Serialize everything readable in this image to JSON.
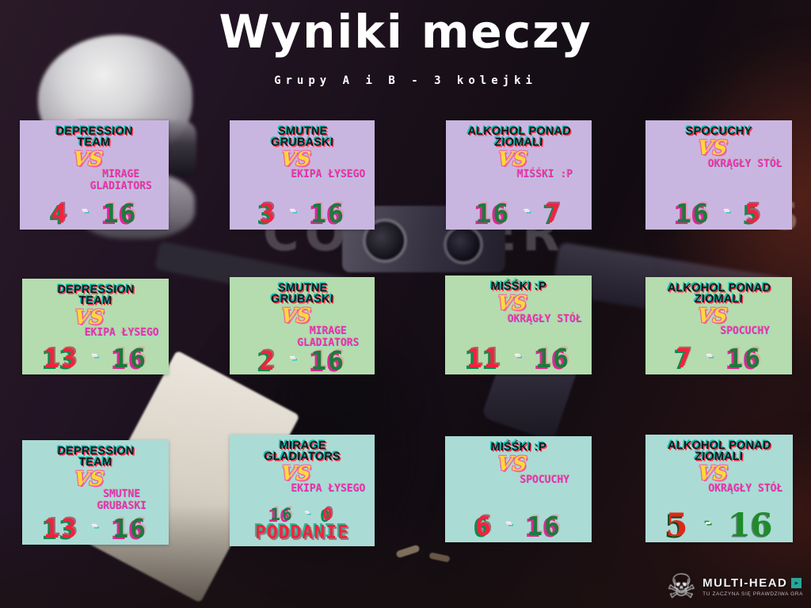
{
  "title": "Wyniki meczy",
  "subtitle": "Grupy A i B - 3 kolejki",
  "labels": {
    "vs": "VS",
    "dash": "-"
  },
  "background": {
    "watermark": "COUNTER",
    "watermark_s": "S"
  },
  "colors": {
    "row1-bg": "#c9b6e0",
    "row2-bg": "#b4dcae",
    "row3-bg": "#abdbd5",
    "team1-ink": "#16161a",
    "glitch-teal": "#00c2b2",
    "glitch-red": "#ff3048",
    "vs-yellow": "#ffd83a",
    "vs-pink": "#f0609e",
    "team2-magenta": "#e531ae",
    "score-red": "#f5213d",
    "score-red-shadow": "#0d8a50",
    "score-green": "#1d7a3c",
    "score-green-shadow": "#d92a93",
    "dash-pink": "#ffdce9",
    "dash-teal": "#35c7c0",
    "serif-red": "#e02818",
    "serif-green": "#1e8c28",
    "brand-teal": "#27a79a",
    "title-white": "#ffffff"
  },
  "matches": [
    {
      "team1": "DEPRESSION TEAM",
      "team2": "MIRAGE GLADIATORS",
      "score1": "4",
      "score2": "16",
      "result1": "loss",
      "result2": "win"
    },
    {
      "team1": "SMUTNE GRUBASKI",
      "team2": "EKIPA ŁYSEGO",
      "score1": "3",
      "score2": "16",
      "result1": "loss",
      "result2": "win"
    },
    {
      "team1": "ALKOHOL PONAD ZIOMALI",
      "team2": "MIŚŚKI :P",
      "score1": "16",
      "score2": "7",
      "result1": "win",
      "result2": "loss"
    },
    {
      "team1": "SPOCUCHY",
      "team2": "OKRĄGŁY STÓŁ",
      "score1": "16",
      "score2": "5",
      "result1": "win",
      "result2": "loss"
    },
    {
      "team1": "DEPRESSION TEAM",
      "team2": "EKIPA ŁYSEGO",
      "score1": "13",
      "score2": "16",
      "result1": "loss",
      "result2": "win"
    },
    {
      "team1": "SMUTNE GRUBASKI",
      "team2": "MIRAGE GLADIATORS",
      "score1": "2",
      "score2": "16",
      "result1": "loss",
      "result2": "win"
    },
    {
      "team1": "MIŚŚKI :P",
      "team2": "OKRĄGŁY STÓŁ",
      "score1": "11",
      "score2": "16",
      "result1": "loss",
      "result2": "win"
    },
    {
      "team1": "ALKOHOL PONAD ZIOMALI",
      "team2": "SPOCUCHY",
      "score1": "7",
      "score2": "16",
      "result1": "loss",
      "result2": "win"
    },
    {
      "team1": "DEPRESSION TEAM",
      "team2": "SMUTNE GRUBASKI",
      "score1": "13",
      "score2": "16",
      "result1": "loss",
      "result2": "win"
    },
    {
      "team1": "MIRAGE GLADIATORS",
      "team2": "EKIPA ŁYSEGO",
      "score1": "16",
      "score2": "0",
      "result1": "win",
      "result2": "loss",
      "note": "PODDANIE"
    },
    {
      "team1": "MIŚŚKI :P",
      "team2": "SPOCUCHY",
      "score1": "6",
      "score2": "16",
      "result1": "loss",
      "result2": "win"
    },
    {
      "team1": "ALKOHOL PONAD ZIOMALI",
      "team2": "OKRĄGŁY STÓŁ",
      "score1": "5",
      "score2": "16",
      "result1": "loss",
      "result2": "win"
    }
  ],
  "footer": {
    "brand": "MULTI-HEAD",
    "tagline": "TU ZACZYNA SIĘ PRAWDZIWA GRA",
    "skull": "☠",
    "chip_glyph": "▸"
  }
}
